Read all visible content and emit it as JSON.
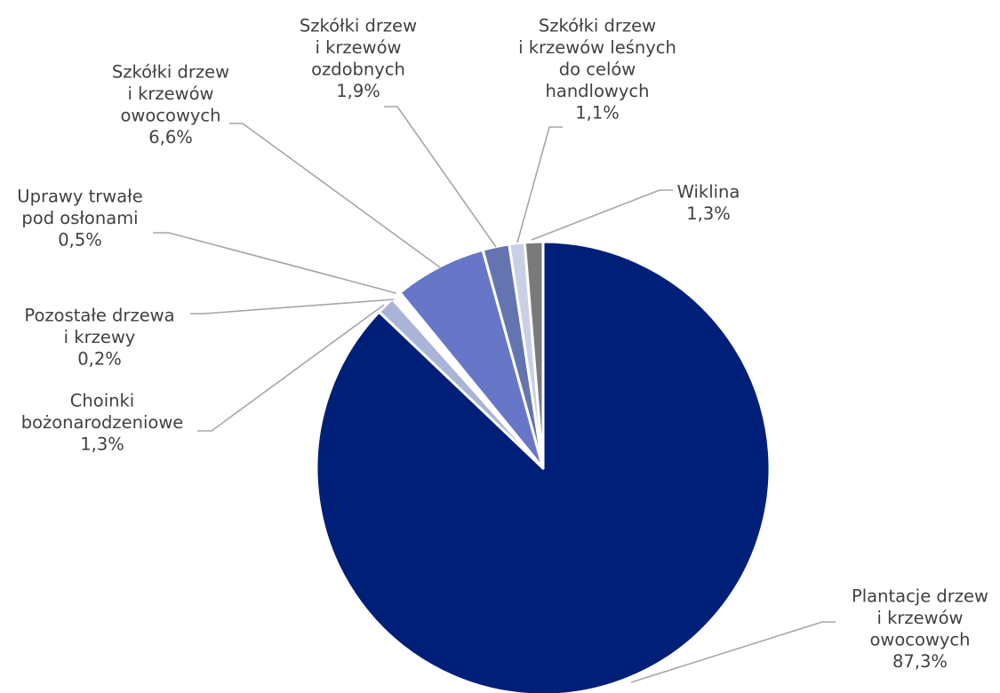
{
  "chart_data": {
    "type": "pie",
    "start_angle_deg": 0,
    "direction": "clockwise",
    "slices": [
      {
        "label": [
          "Plantacje drzew",
          "i krzewów",
          "owocowych"
        ],
        "value": 87.3,
        "value_label": "87,3%",
        "color": "#001f78"
      },
      {
        "label": [
          "Choinki",
          "bożonarodzeniowe"
        ],
        "value": 1.3,
        "value_label": "1,3%",
        "color": "#a9b4d6"
      },
      {
        "label": [
          "Pozostałe drzewa",
          "i krzewy"
        ],
        "value": 0.2,
        "value_label": "0,2%",
        "color": "#262626"
      },
      {
        "label": [
          "Uprawy trwałe",
          "pod osłonami"
        ],
        "value": 0.5,
        "value_label": "0,5%",
        "color": "#ffffff"
      },
      {
        "label": [
          "Szkółki drzew",
          "i krzewów",
          "owocowych"
        ],
        "value": 6.6,
        "value_label": "6,6%",
        "color": "#6876c8"
      },
      {
        "label": [
          "Szkółki drzew",
          "i krzewów",
          "ozdobnych"
        ],
        "value": 1.9,
        "value_label": "1,9%",
        "color": "#6474b0"
      },
      {
        "label": [
          "Szkółki drzew",
          "i krzewów leśnych",
          "do celów",
          "handlowych"
        ],
        "value": 1.1,
        "value_label": "1,1%",
        "color": "#c9d0e6"
      },
      {
        "label": [
          "Wiklina"
        ],
        "value": 1.3,
        "value_label": "1,3%",
        "color": "#7a7a7a"
      }
    ],
    "title": "",
    "legend": "none"
  }
}
